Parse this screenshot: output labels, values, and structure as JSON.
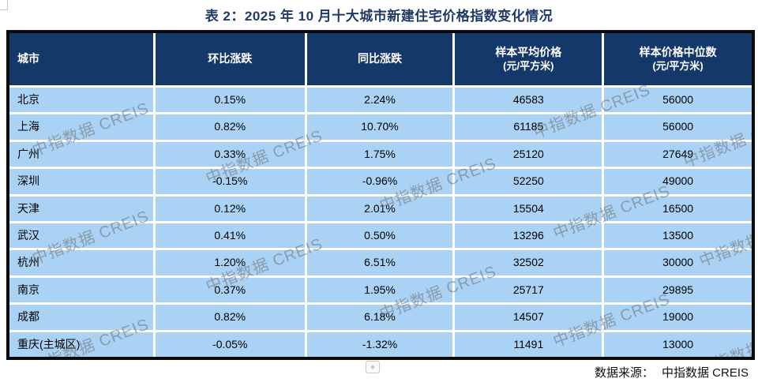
{
  "title": "表 2：2025 年 10 月十大城市新建住宅价格指数变化情况",
  "table": {
    "columns": [
      {
        "label": "城市",
        "sub": ""
      },
      {
        "label": "环比涨跌",
        "sub": ""
      },
      {
        "label": "同比涨跌",
        "sub": ""
      },
      {
        "label": "样本平均价格",
        "sub": "(元/平方米)"
      },
      {
        "label": "样本价格中位数",
        "sub": "(元/平方米)"
      }
    ],
    "rows": [
      {
        "city": "北京",
        "mom": "0.15%",
        "yoy": "2.24%",
        "avg_price": "46583",
        "median_price": "56000"
      },
      {
        "city": "上海",
        "mom": "0.82%",
        "yoy": "10.70%",
        "avg_price": "61185",
        "median_price": "56000"
      },
      {
        "city": "广州",
        "mom": "0.33%",
        "yoy": "1.75%",
        "avg_price": "25120",
        "median_price": "27649"
      },
      {
        "city": "深圳",
        "mom": "-0.15%",
        "yoy": "-0.96%",
        "avg_price": "52250",
        "median_price": "49000"
      },
      {
        "city": "天津",
        "mom": "0.12%",
        "yoy": "2.01%",
        "avg_price": "15504",
        "median_price": "16500"
      },
      {
        "city": "武汉",
        "mom": "0.41%",
        "yoy": "0.50%",
        "avg_price": "13296",
        "median_price": "13500"
      },
      {
        "city": "杭州",
        "mom": "1.20%",
        "yoy": "6.51%",
        "avg_price": "32502",
        "median_price": "30000"
      },
      {
        "city": "南京",
        "mom": "0.37%",
        "yoy": "1.95%",
        "avg_price": "25717",
        "median_price": "29895"
      },
      {
        "city": "成都",
        "mom": "0.82%",
        "yoy": "6.18%",
        "avg_price": "14507",
        "median_price": "19000"
      },
      {
        "city": "重庆(主城区)",
        "mom": "-0.05%",
        "yoy": "-1.32%",
        "avg_price": "11491",
        "median_price": "13000"
      }
    ]
  },
  "watermark": {
    "text": "中指数据 CREIS"
  },
  "expand_button": {
    "label": "+"
  },
  "footer": {
    "source_label": "数据来源：",
    "source_value": "中指数据 CREIS"
  },
  "colors": {
    "header_bg": "#14386a",
    "row_bg": "#a9d2f5",
    "title_color": "#1e3a66",
    "frame_border": "#0a0a0a"
  },
  "chart_data": {
    "type": "table",
    "title": "表 2：2025 年 10 月十大城市新建住宅价格指数变化情况",
    "columns": [
      "城市",
      "环比涨跌",
      "同比涨跌",
      "样本平均价格(元/平方米)",
      "样本价格中位数(元/平方米)"
    ],
    "rows": [
      [
        "北京",
        "0.15%",
        "2.24%",
        46583,
        56000
      ],
      [
        "上海",
        "0.82%",
        "10.70%",
        61185,
        56000
      ],
      [
        "广州",
        "0.33%",
        "1.75%",
        25120,
        27649
      ],
      [
        "深圳",
        "-0.15%",
        "-0.96%",
        52250,
        49000
      ],
      [
        "天津",
        "0.12%",
        "2.01%",
        15504,
        16500
      ],
      [
        "武汉",
        "0.41%",
        "0.50%",
        13296,
        13500
      ],
      [
        "杭州",
        "1.20%",
        "6.51%",
        32502,
        30000
      ],
      [
        "南京",
        "0.37%",
        "1.95%",
        25717,
        29895
      ],
      [
        "成都",
        "0.82%",
        "6.18%",
        14507,
        19000
      ],
      [
        "重庆(主城区)",
        "-0.05%",
        "-1.32%",
        11491,
        13000
      ]
    ]
  }
}
